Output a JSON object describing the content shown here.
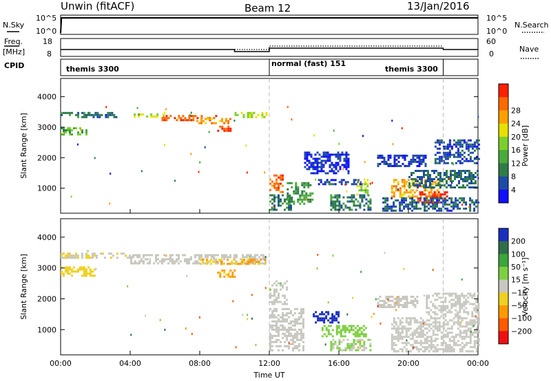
{
  "header": {
    "station": "Unwin (fitACF)",
    "beam": "Beam 12",
    "date": "13/Jan/2016"
  },
  "status_panel": {
    "nsky_label": "N.Sky",
    "nsky_ticks": [
      "10^5",
      "10^0"
    ],
    "nsearch_label": "N.Search",
    "nsearch_ticks": [
      "10^5",
      "10^0"
    ],
    "freq_label": "Freq.",
    "freq_unit": "[MHz]",
    "freq_ticks": [
      "18",
      "8"
    ],
    "nave_label": "Nave",
    "nave_ticks": [
      "60",
      "0"
    ],
    "cpid_label": "CPID",
    "cpid_segments": [
      {
        "name": "themis 3300",
        "start_h": 0,
        "end_h": 12
      },
      {
        "name": "normal (fast) 151",
        "start_h": 12,
        "end_h": 22
      },
      {
        "name": "themis 3300",
        "start_h": 17.8,
        "end_h": 22
      }
    ]
  },
  "colors": {
    "power_scale": [
      "#1010ff",
      "#1e4aa8",
      "#2f7c4a",
      "#4aaa3a",
      "#7ccf2e",
      "#e8e000",
      "#ffa000",
      "#ff6a00",
      "#ff2000"
    ],
    "velocity_scale": [
      "#1a2fc0",
      "#2e6f4a",
      "#3ca63a",
      "#7cd040",
      "#c8c8c0",
      "#f0d020",
      "#ff9a00",
      "#ff5a00",
      "#f01010"
    ],
    "ground_scatter": "#c8c8c0"
  },
  "chart_data": [
    {
      "type": "heatmap",
      "name": "power",
      "ylabel": "Slant Range [km]",
      "ylim": [
        180,
        4600
      ],
      "yticks": [
        "1000",
        "2000",
        "3000",
        "4000"
      ],
      "xlim_hours": [
        0,
        24
      ],
      "xticks": [
        "00:00",
        "04:00",
        "08:00",
        "12:00",
        "16:00",
        "20:00",
        "00:00"
      ],
      "colorbar": {
        "label": "Power [dB]",
        "ticks": [
          "4",
          "8",
          "12",
          "16",
          "20",
          "24",
          "28"
        ],
        "range": [
          0,
          30
        ]
      },
      "regions": [
        {
          "t0": 0.0,
          "t1": 1.6,
          "r0": 3330,
          "r1": 3500,
          "value": 8
        },
        {
          "t0": 1.6,
          "t1": 3.2,
          "r0": 3300,
          "r1": 3500,
          "value": 6
        },
        {
          "t0": 4.2,
          "t1": 6.0,
          "r0": 3330,
          "r1": 3450,
          "value": 16
        },
        {
          "t0": 5.8,
          "t1": 9.0,
          "r0": 3250,
          "r1": 3400,
          "value": 26
        },
        {
          "t0": 7.8,
          "t1": 9.8,
          "r0": 3150,
          "r1": 3300,
          "value": 22
        },
        {
          "t0": 9.0,
          "t1": 10.0,
          "r0": 2850,
          "r1": 3050,
          "value": 27
        },
        {
          "t0": 0.0,
          "t1": 1.5,
          "r0": 2750,
          "r1": 3000,
          "value": 12
        },
        {
          "t0": 10.0,
          "t1": 11.8,
          "r0": 3350,
          "r1": 3500,
          "value": 17
        },
        {
          "t0": 12.0,
          "t1": 12.8,
          "r0": 850,
          "r1": 1450,
          "value": 25
        },
        {
          "t0": 12.0,
          "t1": 13.2,
          "r0": 300,
          "r1": 800,
          "value": 8
        },
        {
          "t0": 13.0,
          "t1": 14.5,
          "r0": 500,
          "r1": 1200,
          "value": 10
        },
        {
          "t0": 14.8,
          "t1": 17.5,
          "r0": 1100,
          "r1": 1300,
          "value": 4
        },
        {
          "t0": 15.5,
          "t1": 17.8,
          "r0": 300,
          "r1": 800,
          "value": 8
        },
        {
          "t0": 17.0,
          "t1": 17.6,
          "r0": 800,
          "r1": 1300,
          "value": 16
        },
        {
          "t0": 19.0,
          "t1": 21.8,
          "r0": 700,
          "r1": 1300,
          "value": 22
        },
        {
          "t0": 20.5,
          "t1": 22.2,
          "r0": 500,
          "r1": 900,
          "value": 28
        },
        {
          "t0": 18.5,
          "t1": 24.0,
          "r0": 250,
          "r1": 700,
          "value": 6
        },
        {
          "t0": 20.0,
          "t1": 24.0,
          "r0": 1000,
          "r1": 1600,
          "value": 7
        },
        {
          "t0": 18.2,
          "t1": 21.0,
          "r0": 1700,
          "r1": 2100,
          "value": 4
        },
        {
          "t0": 21.5,
          "t1": 24.0,
          "r0": 1800,
          "r1": 2600,
          "value": 5
        },
        {
          "t0": 14.0,
          "t1": 16.5,
          "r0": 1500,
          "r1": 2200,
          "value": 3
        }
      ]
    },
    {
      "type": "heatmap",
      "name": "velocity",
      "ylabel": "Slant Range [km]",
      "ylim": [
        180,
        4600
      ],
      "yticks": [
        "1000",
        "2000",
        "3000",
        "4000"
      ],
      "xlim_hours": [
        0,
        24
      ],
      "xticks": [
        "00:00",
        "04:00",
        "08:00",
        "12:00",
        "16:00",
        "20:00",
        "00:00"
      ],
      "colorbar": {
        "label": "Velocity [m s⁻¹]",
        "ticks": [
          "200",
          "100",
          "50",
          "15",
          "−15",
          "−50",
          "−100",
          "−200"
        ],
        "range": [
          -250,
          250
        ]
      },
      "regions": [
        {
          "t0": 0.0,
          "t1": 4.0,
          "r0": 3330,
          "r1": 3500,
          "value": -20
        },
        {
          "t0": 0.0,
          "t1": 2.0,
          "r0": 2750,
          "r1": 3050,
          "value": -50
        },
        {
          "t0": 4.0,
          "t1": 11.8,
          "r0": 3150,
          "r1": 3450,
          "value": 0
        },
        {
          "t0": 8.0,
          "t1": 11.8,
          "r0": 3150,
          "r1": 3300,
          "value": -80
        },
        {
          "t0": 9.0,
          "t1": 10.0,
          "r0": 2700,
          "r1": 2950,
          "value": -90
        },
        {
          "t0": 12.0,
          "t1": 14.0,
          "r0": 300,
          "r1": 1700,
          "value": 0
        },
        {
          "t0": 12.0,
          "t1": 13.0,
          "r0": 1800,
          "r1": 2600,
          "value": 10
        },
        {
          "t0": 14.5,
          "t1": 16.0,
          "r0": 1200,
          "r1": 1600,
          "value": 220
        },
        {
          "t0": 15.0,
          "t1": 17.6,
          "r0": 800,
          "r1": 1150,
          "value": 60
        },
        {
          "t0": 15.5,
          "t1": 17.8,
          "r0": 300,
          "r1": 700,
          "value": 30
        },
        {
          "t0": 19.0,
          "t1": 24.0,
          "r0": 300,
          "r1": 1400,
          "value": 0
        },
        {
          "t0": 21.0,
          "t1": 24.0,
          "r0": 1400,
          "r1": 2200,
          "value": 5
        },
        {
          "t0": 18.2,
          "t1": 20.5,
          "r0": 1700,
          "r1": 2100,
          "value": 0
        }
      ]
    }
  ]
}
